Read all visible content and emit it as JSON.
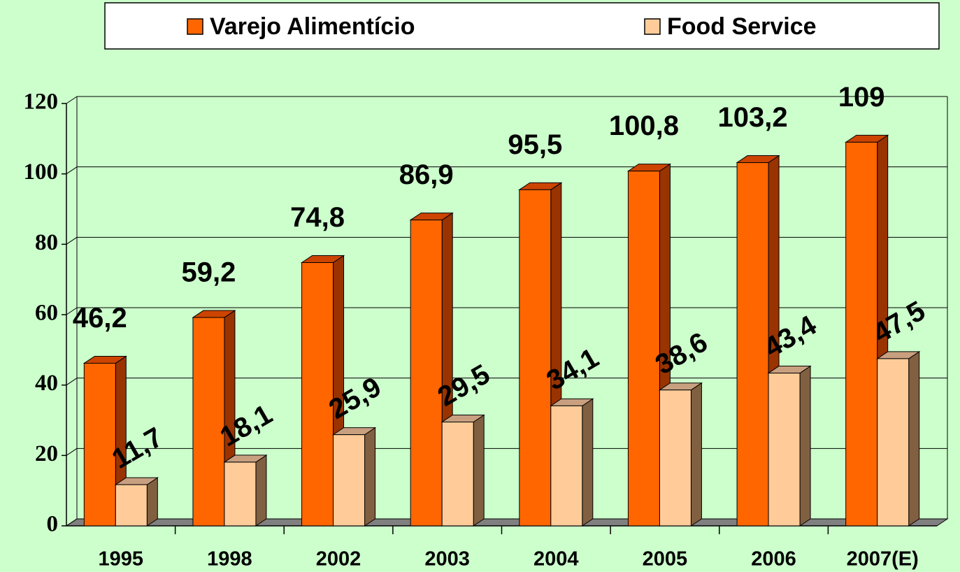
{
  "chart_data": {
    "type": "bar3d",
    "categories": [
      "1995",
      "1998",
      "2002",
      "2003",
      "2004",
      "2005",
      "2006",
      "2007(E)"
    ],
    "series": [
      {
        "name": "Varejo Alimentício",
        "color": "#ff6600",
        "values": [
          46.2,
          59.2,
          74.8,
          86.9,
          95.5,
          100.8,
          103.2,
          109
        ],
        "value_labels": [
          "46,2",
          "59,2",
          "74,8",
          "86,9",
          "95,5",
          "100,8",
          "103,2",
          "109"
        ]
      },
      {
        "name": "Food Service",
        "color": "#ffcc99",
        "values": [
          11.7,
          18.1,
          25.9,
          29.5,
          34.1,
          38.6,
          43.4,
          47.5
        ],
        "value_labels": [
          "11,7",
          "18,1",
          "25,9",
          "29,5",
          "34,1",
          "38,6",
          "43,4",
          "47,5"
        ]
      }
    ],
    "ylim": [
      0,
      120
    ],
    "yticks": [
      0,
      20,
      40,
      60,
      80,
      100,
      120
    ],
    "grid": true
  }
}
